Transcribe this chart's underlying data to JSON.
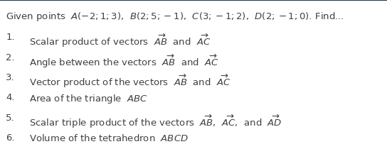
{
  "background_color": "#ffffff",
  "border_color": "#1f3864",
  "title_color": "#404040",
  "item_num_color": "#404040",
  "item_text_color": "#404040",
  "title_fontsize": 9.5,
  "item_fontsize": 9.5,
  "figsize": [
    5.44,
    2.1
  ],
  "dpi": 100,
  "title_line": "Given points  $\\mathit{A}(-2;1;3)$,  $\\mathit{B}(2;5;-1)$,  $\\mathit{C}(3;-1;2)$,  $\\mathit{D}(2;-1;0)$. Find...",
  "items": [
    {
      "num": "1.",
      "text": "Scalar product of vectors  $\\mathit{\\overrightarrow{AB}}$  and  $\\mathit{\\overrightarrow{AC}}$"
    },
    {
      "num": "2.",
      "text": "Angle between the vectors  $\\mathit{\\overrightarrow{AB}}$  and  $\\mathit{\\overrightarrow{AC}}$"
    },
    {
      "num": "3.",
      "text": "Vector product of the vectors  $\\mathit{\\overrightarrow{AB}}$  and  $\\mathit{\\overrightarrow{AC}}$"
    },
    {
      "num": "4.",
      "text": "Area of the triangle  $\\mathit{ABC}$"
    },
    {
      "num": "5.",
      "text": "Scalar triple product of the vectors  $\\mathit{\\overrightarrow{AB}}$,  $\\mathit{\\overrightarrow{AC}}$,  and  $\\mathit{\\overrightarrow{AD}}$"
    },
    {
      "num": "6.",
      "text": "Volume of the tetrahedron  $\\mathit{ABCD}$"
    }
  ]
}
